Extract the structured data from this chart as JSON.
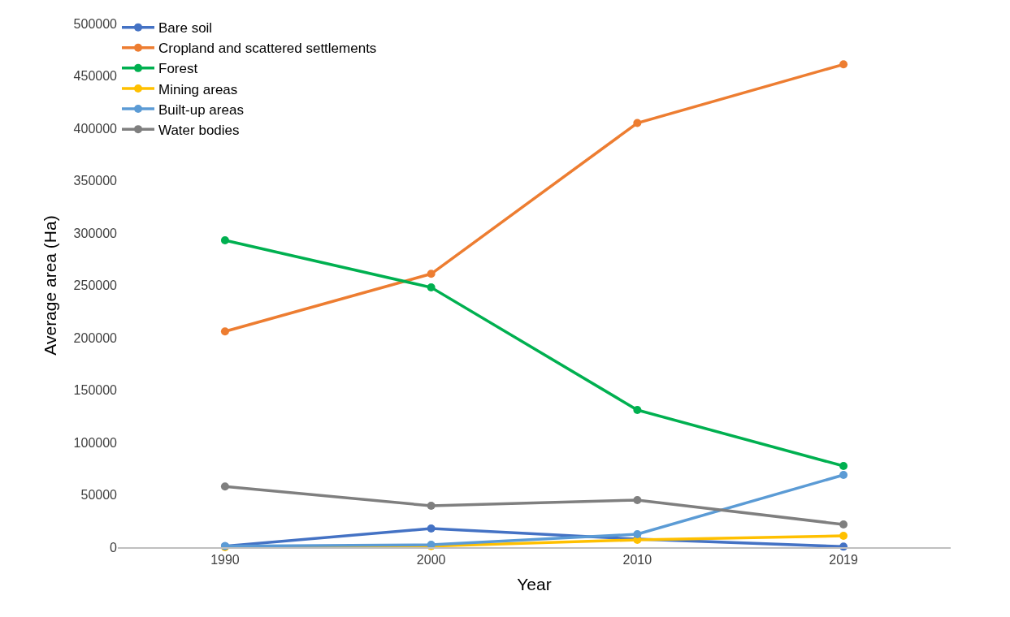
{
  "chart_data": {
    "type": "line",
    "xlabel": "Year",
    "ylabel": "Average area (Ha)",
    "categories": [
      "1990",
      "2000",
      "2010",
      "2019"
    ],
    "series": [
      {
        "name": "Bare soil",
        "color": "#4472c4",
        "values": [
          1000,
          17800,
          7700,
          500
        ]
      },
      {
        "name": "Cropland and scattered settlements",
        "color": "#ed7d31",
        "values": [
          206000,
          261000,
          405000,
          461000
        ]
      },
      {
        "name": "Forest",
        "color": "#00b050",
        "values": [
          293000,
          248000,
          131000,
          77500
        ]
      },
      {
        "name": "Mining areas",
        "color": "#ffc000",
        "values": [
          0,
          1000,
          7000,
          10800
        ]
      },
      {
        "name": "Built-up areas",
        "color": "#5b9bd5",
        "values": [
          1000,
          2300,
          12400,
          69000
        ]
      },
      {
        "name": "Water bodies",
        "color": "#7f7f7f",
        "values": [
          58000,
          39500,
          45000,
          21700
        ]
      }
    ],
    "ylim": [
      0,
      500000
    ],
    "yticks": [
      0,
      50000,
      100000,
      150000,
      200000,
      250000,
      300000,
      350000,
      400000,
      450000,
      500000
    ],
    "legend": "top left",
    "marker": "circle",
    "line_style": "solid"
  }
}
